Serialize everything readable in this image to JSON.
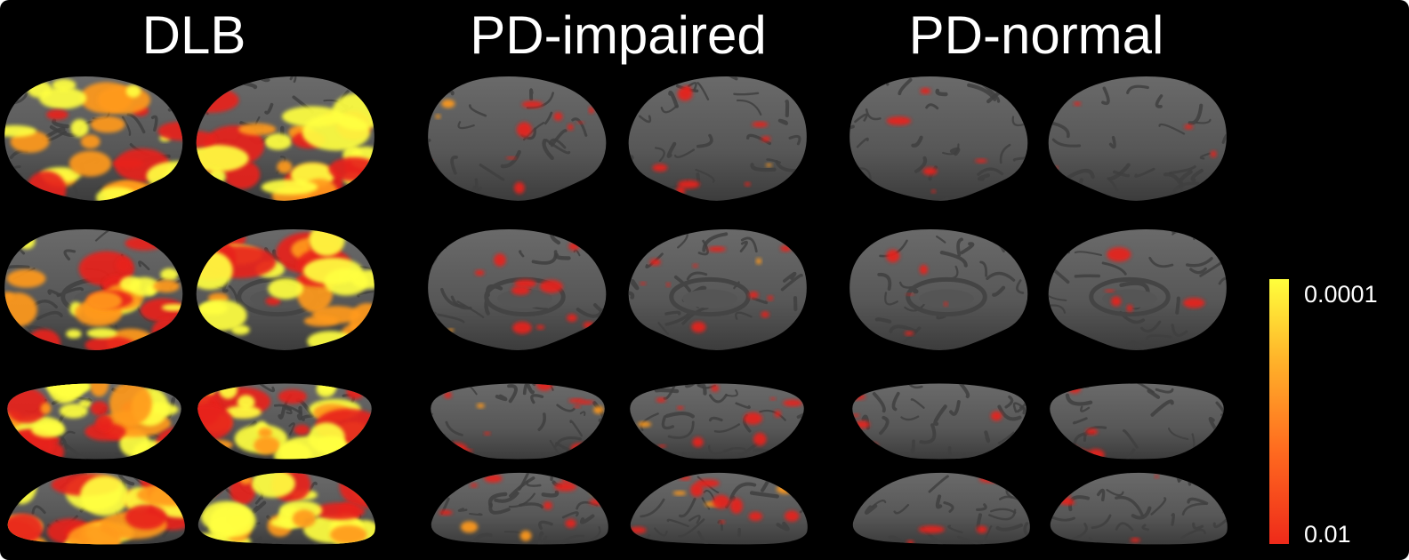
{
  "groups": [
    {
      "id": "dlb",
      "title": "DLB",
      "intensity": 1.0
    },
    {
      "id": "pd-impaired",
      "title": "PD-impaired",
      "intensity": 0.35
    },
    {
      "id": "pd-normal",
      "title": "PD-normal",
      "intensity": 0.08
    }
  ],
  "views": [
    "lateral",
    "medial",
    "ventral",
    "dorsal"
  ],
  "colorbar": {
    "top_label": "0.0001",
    "bottom_label": "0.01",
    "colors": [
      "#ffff3c",
      "#ffb42a",
      "#ff6a1f",
      "#ee2a1a"
    ]
  },
  "colors": {
    "background": "#000000",
    "cortex": "#5b5b5b",
    "cortex_shade": "#3f3f3f",
    "highlight": "#ffff40",
    "mid": "#ff9a1f",
    "low": "#e8241a"
  }
}
